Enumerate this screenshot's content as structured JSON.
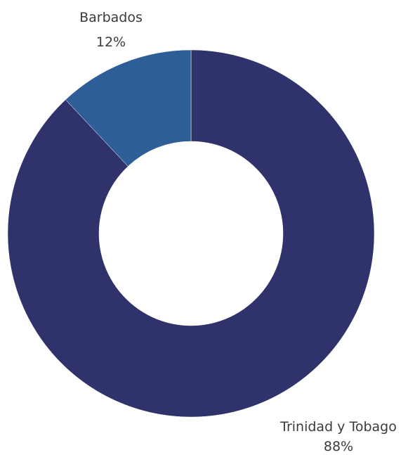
{
  "chart_data": {
    "type": "pie",
    "donut": true,
    "slices": [
      {
        "label": "Trinidad y Tobago",
        "value": 88,
        "value_label": "88%",
        "color": "#30336b"
      },
      {
        "label": "Barbados",
        "value": 12,
        "value_label": "12%",
        "color": "#2d5e97"
      }
    ]
  }
}
